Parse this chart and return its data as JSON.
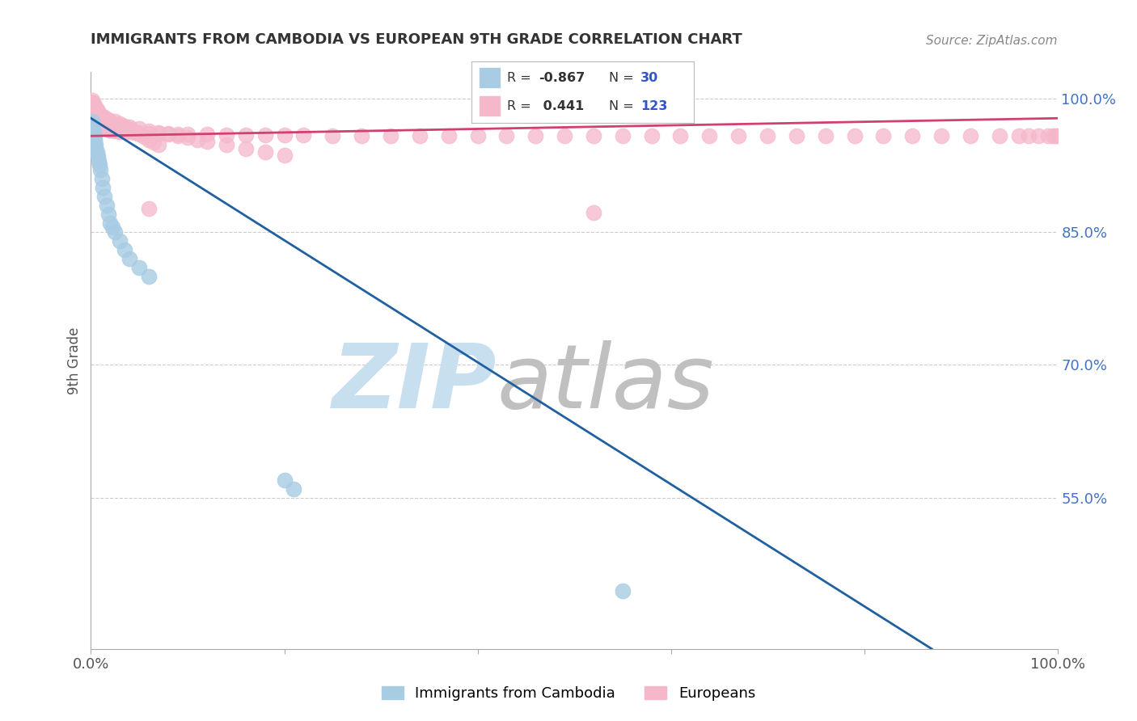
{
  "title": "IMMIGRANTS FROM CAMBODIA VS EUROPEAN 9TH GRADE CORRELATION CHART",
  "source": "Source: ZipAtlas.com",
  "ylabel": "9th Grade",
  "ytick_labels": [
    "100.0%",
    "85.0%",
    "70.0%",
    "55.0%"
  ],
  "ytick_values": [
    1.0,
    0.85,
    0.7,
    0.55
  ],
  "legend_blue_r": "-0.867",
  "legend_blue_n": "30",
  "legend_pink_r": "0.441",
  "legend_pink_n": "123",
  "blue_scatter_color": "#a8cce4",
  "pink_scatter_color": "#f5b8cb",
  "blue_line_color": "#2060a0",
  "pink_line_color": "#d04070",
  "legend_box_blue": "#a8cce4",
  "legend_box_pink": "#f5b8cb",
  "watermark_zip_color": "#c8dff0",
  "watermark_atlas_color": "#c0c0c0",
  "background_color": "#ffffff",
  "grid_color": "#cccccc",
  "title_color": "#333333",
  "source_color": "#888888",
  "ylabel_color": "#555555",
  "ytick_color": "#4472c4",
  "xtick_color": "#555555",
  "blue_x": [
    0.001,
    0.002,
    0.002,
    0.003,
    0.003,
    0.004,
    0.004,
    0.005,
    0.005,
    0.006,
    0.007,
    0.008,
    0.009,
    0.01,
    0.011,
    0.012,
    0.014,
    0.016,
    0.018,
    0.02,
    0.022,
    0.025,
    0.03,
    0.035,
    0.04,
    0.05,
    0.06,
    0.2,
    0.21,
    0.55
  ],
  "blue_y": [
    0.975,
    0.97,
    0.965,
    0.962,
    0.958,
    0.955,
    0.952,
    0.948,
    0.945,
    0.94,
    0.935,
    0.93,
    0.925,
    0.92,
    0.91,
    0.9,
    0.89,
    0.88,
    0.87,
    0.86,
    0.855,
    0.85,
    0.84,
    0.83,
    0.82,
    0.81,
    0.8,
    0.57,
    0.56,
    0.445
  ],
  "pink_x": [
    0.001,
    0.001,
    0.002,
    0.002,
    0.002,
    0.003,
    0.003,
    0.003,
    0.004,
    0.004,
    0.004,
    0.005,
    0.005,
    0.005,
    0.006,
    0.006,
    0.007,
    0.007,
    0.008,
    0.008,
    0.009,
    0.009,
    0.01,
    0.01,
    0.011,
    0.012,
    0.013,
    0.014,
    0.015,
    0.016,
    0.017,
    0.018,
    0.019,
    0.02,
    0.022,
    0.025,
    0.028,
    0.03,
    0.035,
    0.04,
    0.045,
    0.05,
    0.06,
    0.07,
    0.08,
    0.09,
    0.1,
    0.12,
    0.14,
    0.16,
    0.18,
    0.2,
    0.22,
    0.25,
    0.28,
    0.31,
    0.34,
    0.37,
    0.4,
    0.43,
    0.46,
    0.49,
    0.52,
    0.55,
    0.58,
    0.61,
    0.64,
    0.67,
    0.7,
    0.73,
    0.76,
    0.79,
    0.82,
    0.85,
    0.88,
    0.91,
    0.94,
    0.96,
    0.97,
    0.98,
    0.99,
    0.995,
    0.998,
    1.0,
    0.002,
    0.003,
    0.004,
    0.005,
    0.006,
    0.007,
    0.008,
    0.01,
    0.012,
    0.015,
    0.018,
    0.02,
    0.025,
    0.03,
    0.04,
    0.05,
    0.06,
    0.07,
    0.08,
    0.09,
    0.1,
    0.11,
    0.12,
    0.14,
    0.16,
    0.18,
    0.2,
    0.025,
    0.03,
    0.035,
    0.04,
    0.045,
    0.05,
    0.055,
    0.06,
    0.065,
    0.07,
    0.52,
    0.06
  ],
  "pink_y": [
    0.998,
    0.996,
    0.995,
    0.993,
    0.991,
    0.99,
    0.988,
    0.986,
    0.985,
    0.984,
    0.982,
    0.981,
    0.98,
    0.979,
    0.978,
    0.977,
    0.976,
    0.975,
    0.974,
    0.973,
    0.972,
    0.971,
    0.97,
    0.97,
    0.969,
    0.969,
    0.968,
    0.968,
    0.967,
    0.967,
    0.966,
    0.966,
    0.965,
    0.965,
    0.965,
    0.964,
    0.964,
    0.963,
    0.963,
    0.963,
    0.962,
    0.962,
    0.961,
    0.961,
    0.961,
    0.96,
    0.96,
    0.96,
    0.959,
    0.959,
    0.959,
    0.959,
    0.959,
    0.958,
    0.958,
    0.958,
    0.958,
    0.958,
    0.958,
    0.958,
    0.958,
    0.958,
    0.958,
    0.958,
    0.958,
    0.958,
    0.958,
    0.958,
    0.958,
    0.958,
    0.958,
    0.958,
    0.958,
    0.958,
    0.958,
    0.958,
    0.958,
    0.958,
    0.958,
    0.958,
    0.958,
    0.958,
    0.958,
    0.958,
    0.996,
    0.994,
    0.992,
    0.99,
    0.988,
    0.986,
    0.984,
    0.982,
    0.98,
    0.978,
    0.976,
    0.974,
    0.972,
    0.97,
    0.968,
    0.966,
    0.964,
    0.962,
    0.96,
    0.958,
    0.956,
    0.954,
    0.952,
    0.948,
    0.944,
    0.94,
    0.936,
    0.975,
    0.972,
    0.969,
    0.966,
    0.963,
    0.96,
    0.957,
    0.954,
    0.951,
    0.948,
    0.872,
    0.876
  ],
  "xlim": [
    0.0,
    1.0
  ],
  "ylim": [
    0.38,
    1.03
  ],
  "blue_line_x": [
    0.0,
    0.87
  ],
  "blue_line_y_start": 0.978,
  "blue_line_y_end": 0.38,
  "pink_line_x": [
    0.0,
    1.0
  ],
  "pink_line_y_start": 0.958,
  "pink_line_y_end": 0.978
}
